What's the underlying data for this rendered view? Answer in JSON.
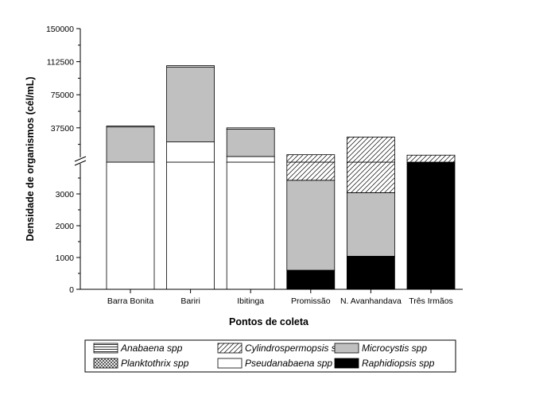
{
  "chart_data": {
    "type": "bar",
    "stacked": true,
    "broken_y_axis": true,
    "ylabel": "Densidade de organismos (cél/mL)",
    "xlabel": "Pontos de coleta",
    "categories": [
      "Barra Bonita",
      "Bariri",
      "Ibitinga",
      "Promissão",
      "N. Avanhandava",
      "Três Irmãos"
    ],
    "y_lower_ticks": [
      "0",
      "1000",
      "2000",
      "3000"
    ],
    "y_upper_ticks": [
      "37500",
      "75000",
      "112500",
      "150000"
    ],
    "series": [
      {
        "name": "Raphidiopsis spp",
        "values": [
          0,
          0,
          0,
          600,
          1040,
          4000
        ]
      },
      {
        "name": "Pseudanabaena spp",
        "values": [
          4000,
          21500,
          5000,
          0,
          0,
          0
        ]
      },
      {
        "name": "Microcystis spp",
        "values": [
          34500,
          85000,
          31000,
          2830,
          2000,
          0
        ]
      },
      {
        "name": "Cylindrospermopsis sp",
        "values": [
          0,
          0,
          0,
          3600,
          24000,
          2500
        ]
      },
      {
        "name": "Planktothrix spp",
        "values": [
          0,
          0,
          0,
          0,
          0,
          0
        ]
      },
      {
        "name": "Anabaena spp",
        "values": [
          1000,
          1500,
          1500,
          0,
          0,
          0
        ]
      }
    ],
    "legend": [
      {
        "name": "Anabaena spp",
        "fill": "hlines"
      },
      {
        "name": "Cylindrospermopsis sp",
        "fill": "diag"
      },
      {
        "name": "Microcystis spp",
        "fill": "#c0c0c0"
      },
      {
        "name": "Planktothrix spp",
        "fill": "cross"
      },
      {
        "name": "Pseudanabaena spp",
        "fill": "#ffffff"
      },
      {
        "name": "Raphidiopsis spp",
        "fill": "#000000"
      }
    ],
    "legend_position": "bottom"
  }
}
